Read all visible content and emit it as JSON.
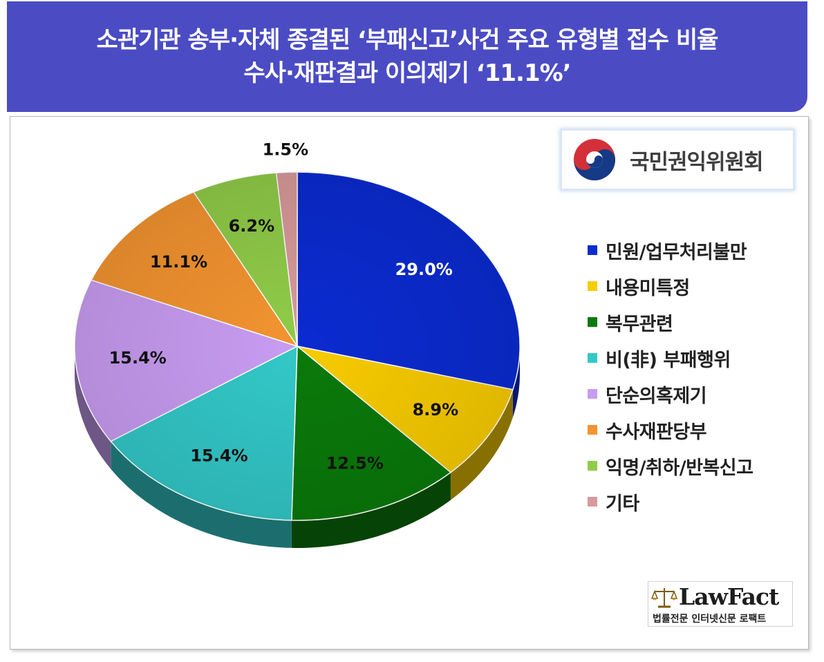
{
  "header": {
    "line1": "소관기관 송부·자체 종결된 ‘부패신고’사건 주요 유형별 접수 비율",
    "line2": "수사·재판결과 이의제기 ‘11.1%’"
  },
  "logo": {
    "org_name": "국민권익위원회",
    "icon": "taegeuk-emblem-icon"
  },
  "watermark": {
    "brand": "LawFact",
    "subtitle": "법률전문 인터넷신문 로팩트",
    "icon": "scales-of-justice-icon"
  },
  "chart_data": {
    "type": "pie",
    "title": "",
    "start_angle_deg": 0,
    "direction": "clockwise",
    "legend_position": "right",
    "categories": [
      "민원/업무처리불만",
      "내용미특정",
      "복무관련",
      "비(非) 부패행위",
      "단순의혹제기",
      "수사재판당부",
      "익명/취하/반복신고",
      "기타"
    ],
    "values": [
      29.0,
      8.9,
      12.5,
      15.4,
      15.4,
      11.1,
      6.2,
      1.5
    ],
    "labels": [
      "29.0%",
      "8.9%",
      "12.5%",
      "15.4%",
      "15.4%",
      "11.1%",
      "6.2%",
      "1.5%"
    ],
    "colors": [
      "#0b2bd1",
      "#f8cc00",
      "#0a7a0a",
      "#33c8c8",
      "#c89cf2",
      "#f39430",
      "#90cc48",
      "#d89a9a"
    ],
    "label_colors": [
      "#ffffff",
      "#111111",
      "#111111",
      "#111111",
      "#111111",
      "#111111",
      "#111111",
      "#111111"
    ]
  }
}
